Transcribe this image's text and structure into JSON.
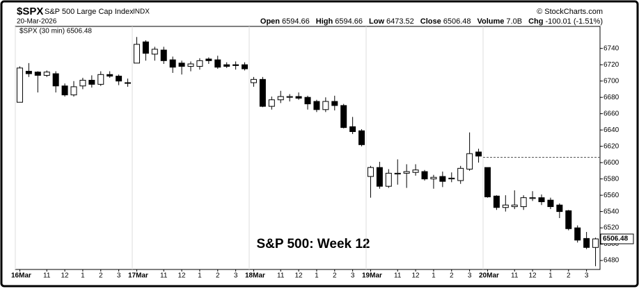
{
  "header": {
    "symbol": "$SPX",
    "name": "S&P 500 Large Cap Index",
    "exchange": "INDX",
    "credit": "© StockCharts.com",
    "date": "20-Mar-2026",
    "stats": [
      {
        "label": "Open",
        "value": "6594.66"
      },
      {
        "label": "High",
        "value": "6594.66"
      },
      {
        "label": "Low",
        "value": "6473.52"
      },
      {
        "label": "Close",
        "value": "6506.48"
      },
      {
        "label": "Volume",
        "value": "7.0B"
      },
      {
        "label": "Chg",
        "value": "-100.01 (-1.51%)"
      }
    ]
  },
  "chart_data": {
    "type": "candlestick",
    "legend": "$SPX (30 min) 6506.48",
    "annotation": "S&P 500:  Week 12",
    "categories": [
      "16Mar",
      null,
      null,
      "11",
      null,
      "12",
      null,
      "1",
      null,
      "2",
      null,
      "3",
      null,
      "17Mar",
      null,
      null,
      "11",
      null,
      "12",
      null,
      "1",
      null,
      "2",
      null,
      "3",
      null,
      "18Mar",
      null,
      null,
      "11",
      null,
      "12",
      null,
      "1",
      null,
      "2",
      null,
      "3",
      null,
      "19Mar",
      null,
      null,
      "11",
      null,
      "12",
      null,
      "1",
      null,
      "2",
      null,
      "3",
      null,
      "20Mar",
      null,
      null,
      "11",
      null,
      "12",
      null,
      "1",
      null,
      "2",
      null,
      "3",
      null
    ],
    "open": [
      6674,
      6712,
      6711,
      6707,
      6709,
      6694,
      6683,
      6694,
      6701,
      6696,
      6708,
      6706,
      6698,
      6722,
      6748,
      6733,
      6738,
      6726,
      6722,
      6718,
      6718,
      6727,
      6726,
      6720,
      6720,
      6720,
      6698,
      6702,
      6669,
      6677,
      6680,
      6681,
      6680,
      6675,
      6665,
      6675,
      6670,
      6644,
      6639,
      6583,
      6594,
      6571,
      6586,
      6587,
      6588,
      6589,
      6580,
      6583,
      6580,
      6578,
      6592,
      6613,
      6594,
      6559,
      6545,
      6546,
      6546,
      6556,
      6557,
      6554,
      6548,
      6541,
      6520,
      6507,
      6496
    ],
    "high": [
      6718,
      6722,
      6712,
      6713,
      6712,
      6697,
      6700,
      6704,
      6707,
      6712,
      6712,
      6708,
      6703,
      6754,
      6750,
      6742,
      6742,
      6730,
      6725,
      6724,
      6728,
      6729,
      6731,
      6723,
      6724,
      6723,
      6705,
      6705,
      6681,
      6688,
      6684,
      6686,
      6682,
      6677,
      6680,
      6682,
      6672,
      6656,
      6641,
      6596,
      6601,
      6592,
      6604,
      6598,
      6598,
      6591,
      6585,
      6589,
      6588,
      6596,
      6637,
      6617,
      6594,
      6560,
      6560,
      6566,
      6560,
      6565,
      6561,
      6557,
      6550,
      6542,
      6523,
      6515,
      6508
    ],
    "low": [
      6674,
      6705,
      6686,
      6705,
      6686,
      6681,
      6681,
      6690,
      6692,
      6694,
      6704,
      6695,
      6693,
      6722,
      6725,
      6725,
      6721,
      6710,
      6708,
      6712,
      6714,
      6721,
      6715,
      6716,
      6714,
      6713,
      6693,
      6668,
      6665,
      6673,
      6675,
      6677,
      6665,
      6662,
      6662,
      6664,
      6642,
      6635,
      6620,
      6557,
      6568,
      6569,
      6573,
      6569,
      6584,
      6578,
      6568,
      6570,
      6576,
      6574,
      6590,
      6600,
      6557,
      6542,
      6540,
      6543,
      6542,
      6553,
      6548,
      6543,
      6532,
      6517,
      6502,
      6494,
      6473
    ],
    "close": [
      6716,
      6709,
      6707,
      6711,
      6694,
      6683,
      6693,
      6701,
      6696,
      6708,
      6706,
      6700,
      6698,
      6745,
      6734,
      6739,
      6725,
      6717,
      6718,
      6721,
      6725,
      6725,
      6717,
      6718,
      6719,
      6715,
      6702,
      6669,
      6677,
      6681,
      6681,
      6679,
      6672,
      6665,
      6675,
      6670,
      6643,
      6638,
      6622,
      6594,
      6571,
      6587,
      6587,
      6589,
      6591,
      6580,
      6582,
      6577,
      6581,
      6593,
      6611,
      6608,
      6558,
      6545,
      6548,
      6548,
      6557,
      6557,
      6552,
      6546,
      6540,
      6519,
      6505,
      6496,
      6506.48
    ],
    "prev_close": 6606.49,
    "ylim": [
      6469,
      6767
    ],
    "yticks": [
      6480,
      6500,
      6520,
      6540,
      6560,
      6580,
      6600,
      6620,
      6640,
      6660,
      6680,
      6700,
      6720,
      6740
    ],
    "grid": false
  }
}
